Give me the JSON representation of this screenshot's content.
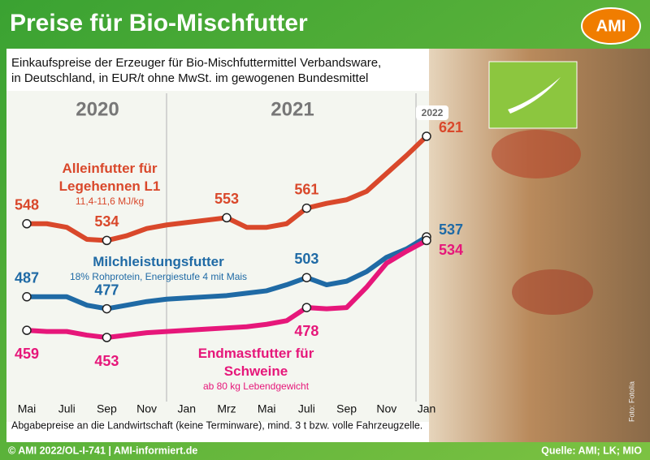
{
  "chart_data": {
    "type": "line",
    "title": "Preise für Bio-Mischfutter",
    "logo": "AMI",
    "subtitle": [
      "Einkaufspreise der Erzeuger für Bio-Mischfuttermittel Verbandsware,",
      "in Deutschland, in EUR/t ohne MwSt. im gewogenen Bundesmittel"
    ],
    "years": [
      "2020",
      "2021",
      "2022"
    ],
    "categories": [
      "Mai",
      null,
      "Juli",
      null,
      "Sep",
      null,
      "Nov",
      null,
      "Jan",
      null,
      "Mrz",
      null,
      "Mai",
      null,
      "Juli",
      null,
      "Sep",
      null,
      "Nov",
      null,
      "Jan"
    ],
    "series": [
      {
        "name": "Alleinfutter für Legehennen L1",
        "description": "11,4-11,6 MJ/kg",
        "color": "#d9482b",
        "values": [
          548,
          548,
          545,
          535,
          534,
          538,
          544,
          547,
          549,
          551,
          553,
          545,
          545,
          548,
          561,
          565,
          568,
          575,
          590,
          605,
          621
        ],
        "labeled_points": [
          0,
          4,
          10,
          14,
          20
        ]
      },
      {
        "name": "Milchleistungsfutter",
        "description": "18% Rohprotein, Energiestufe 4 mit Mais",
        "color": "#1f6aa5",
        "values": [
          487,
          487,
          487,
          480,
          477,
          480,
          483,
          485,
          486,
          487,
          488,
          490,
          492,
          497,
          503,
          497,
          500,
          508,
          520,
          527,
          537
        ],
        "labeled_points": [
          0,
          4,
          14,
          20
        ]
      },
      {
        "name": "Endmastfutter für Schweine",
        "description": "ab 80 kg Lebendgewicht",
        "color": "#e6177a",
        "values": [
          459,
          458,
          458,
          455,
          453,
          455,
          457,
          458,
          459,
          460,
          461,
          462,
          464,
          467,
          478,
          477,
          478,
          495,
          515,
          525,
          534
        ],
        "labeled_points": [
          0,
          4,
          14,
          20
        ]
      }
    ],
    "note": "Abgabepreise an die Landwirtschaft (keine Terminware), mind. 3 t bzw. volle Fahrzeugzelle.",
    "footer": "© AMI 2022/OL-I-741 | AMI-informiert.de",
    "source": "Quelle: AMI; LK; MIO",
    "photo_credit": "Foto: Fotolia"
  }
}
